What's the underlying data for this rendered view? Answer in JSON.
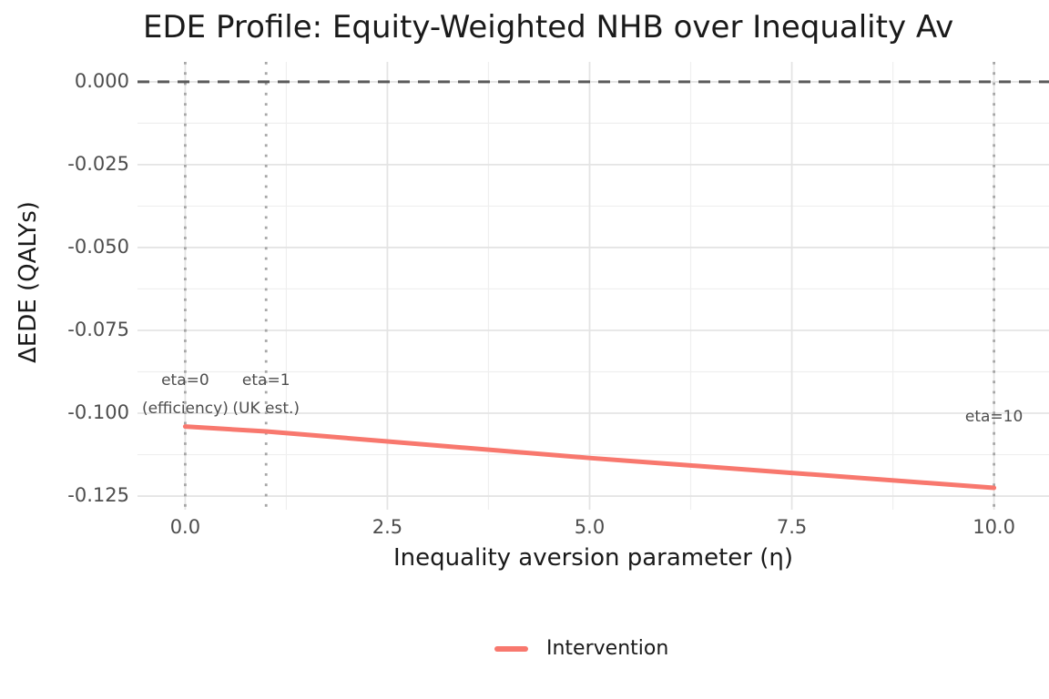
{
  "colors": {
    "series_red": "#F8786E",
    "grid_major": "#E4E4E4",
    "grid_minor": "#EFEFEF",
    "zero_line": "#5A5A5A",
    "eta_vline": "#A6A6A6",
    "tick_text": "#4D4D4D",
    "title_text": "#1A1A1A"
  },
  "chart_data": {
    "type": "line",
    "title": "EDE Profile: Equity-Weighted NHB over Inequality Av",
    "xlabel": "Inequality aversion parameter (η)",
    "ylabel": "ΔEDE (QALYs)",
    "xlim": [
      -0.59,
      10.68
    ],
    "ylim": [
      -0.1291,
      0.006
    ],
    "x_ticks": [
      0.0,
      2.5,
      5.0,
      7.5,
      10.0
    ],
    "x_tick_labels": [
      "0.0",
      "2.5",
      "5.0",
      "7.5",
      "10.0"
    ],
    "y_ticks": [
      0.0,
      -0.025,
      -0.05,
      -0.075,
      -0.1,
      -0.125
    ],
    "y_tick_labels": [
      "0.000",
      "-0.025",
      "-0.050",
      "-0.075",
      "-0.100",
      "-0.125"
    ],
    "grid": "major+minor",
    "legend_position": "bottom",
    "reference_lines": {
      "hline_dashed_y": 0,
      "vlines_dotted_x": [
        0,
        1,
        10
      ]
    },
    "series": [
      {
        "name": "Intervention",
        "color": "#F8786E",
        "x": [
          0,
          1,
          2.5,
          5,
          7.5,
          10
        ],
        "y": [
          -0.104,
          -0.1055,
          -0.1085,
          -0.1135,
          -0.118,
          -0.1225
        ]
      }
    ],
    "annotations": [
      {
        "x": 0,
        "y": -0.09,
        "text": "eta=0"
      },
      {
        "x": 0,
        "y": -0.0985,
        "text": "(efficiency)"
      },
      {
        "x": 1,
        "y": -0.09,
        "text": "eta=1"
      },
      {
        "x": 1,
        "y": -0.0985,
        "text": "(UK est.)"
      },
      {
        "x": 10,
        "y": -0.101,
        "text": "eta=10"
      }
    ],
    "legend": {
      "entries": [
        {
          "label": "Intervention",
          "color": "#F8786E"
        }
      ]
    }
  }
}
